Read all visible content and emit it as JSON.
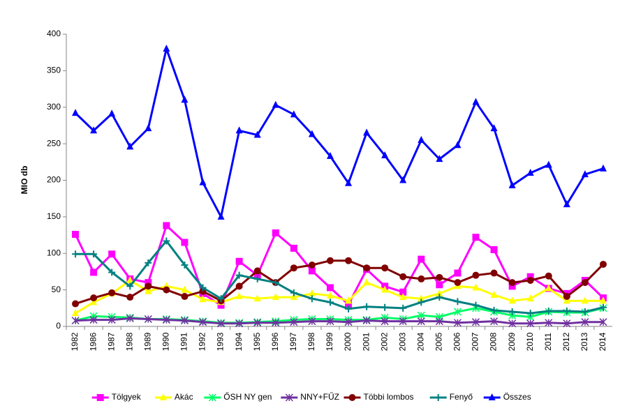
{
  "chart_data": {
    "type": "line",
    "y_label": "MIO db",
    "categories": [
      "1982",
      "1986",
      "1987",
      "1988",
      "1989",
      "1990",
      "1991",
      "1992",
      "1993",
      "1994",
      "1995",
      "1996",
      "1997",
      "1998",
      "1999",
      "2000",
      "2001",
      "2002",
      "2003",
      "2004",
      "2005",
      "2006",
      "2007",
      "2008",
      "2009",
      "2010",
      "2011",
      "2012",
      "2013",
      "2014"
    ],
    "ylim": [
      0,
      400
    ],
    "yticks": [
      0,
      50,
      100,
      150,
      200,
      250,
      300,
      350,
      400
    ],
    "grid": false,
    "legend": "bottom",
    "series": [
      {
        "name": "Tölgyek",
        "color": "#ff00ff",
        "marker": "square",
        "values": [
          126,
          74,
          99,
          65,
          60,
          138,
          115,
          45,
          29,
          89,
          70,
          128,
          107,
          76,
          53,
          30,
          78,
          55,
          47,
          92,
          57,
          73,
          122,
          105,
          55,
          68,
          52,
          45,
          63,
          39
        ]
      },
      {
        "name": "Akác",
        "color": "#ffff00",
        "marker": "triangle",
        "values": [
          18,
          33,
          45,
          63,
          48,
          55,
          50,
          37,
          33,
          41,
          38,
          40,
          40,
          45,
          42,
          35,
          60,
          50,
          40,
          38,
          45,
          55,
          53,
          43,
          35,
          38,
          52,
          35,
          35,
          35
        ]
      },
      {
        "name": "ŐSH NY gen",
        "color": "#00ff66",
        "marker": "star",
        "values": [
          8,
          14,
          13,
          12,
          10,
          10,
          9,
          7,
          5,
          5,
          6,
          7,
          9,
          10,
          10,
          9,
          9,
          12,
          10,
          15,
          13,
          20,
          25,
          20,
          15,
          13,
          20,
          19,
          19,
          25
        ]
      },
      {
        "name": "NNY+FŰZ",
        "color": "#7030a0",
        "marker": "star",
        "values": [
          8,
          9,
          9,
          11,
          10,
          9,
          8,
          6,
          4,
          4,
          5,
          5,
          6,
          7,
          7,
          6,
          8,
          7,
          7,
          7,
          7,
          5,
          6,
          7,
          4,
          4,
          5,
          4,
          6,
          6
        ]
      },
      {
        "name": "Többi lombos",
        "color": "#800000",
        "marker": "circle",
        "values": [
          31,
          39,
          46,
          40,
          55,
          50,
          41,
          48,
          35,
          55,
          76,
          60,
          80,
          84,
          90,
          90,
          80,
          80,
          68,
          65,
          67,
          60,
          70,
          73,
          60,
          63,
          69,
          41,
          60,
          85
        ]
      },
      {
        "name": "Fenyő",
        "color": "#008080",
        "marker": "plus",
        "values": [
          99,
          99,
          74,
          55,
          87,
          117,
          84,
          53,
          38,
          70,
          65,
          60,
          46,
          38,
          33,
          24,
          27,
          26,
          25,
          33,
          40,
          34,
          29,
          22,
          20,
          18,
          21,
          21,
          20,
          26
        ]
      },
      {
        "name": "Összes",
        "color": "#0000ff",
        "marker": "triangle",
        "values": [
          292,
          268,
          291,
          246,
          271,
          380,
          310,
          197,
          150,
          268,
          262,
          303,
          290,
          263,
          233,
          196,
          265,
          234,
          200,
          255,
          229,
          248,
          307,
          271,
          193,
          210,
          221,
          167,
          208,
          216
        ]
      }
    ]
  }
}
